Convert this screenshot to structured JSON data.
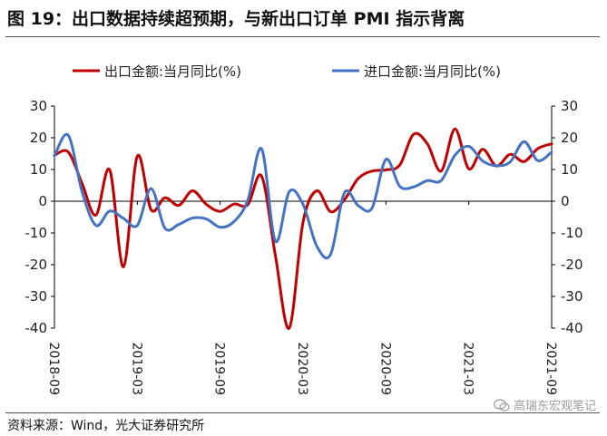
{
  "header": {
    "title": "图 19：出口数据持续超预期，与新出口订单 PMI 指示背离"
  },
  "footer": {
    "source": "资料来源：Wind，光大证券研究所",
    "watermark": "高瑞东宏观笔记"
  },
  "colors": {
    "export": "#C00000",
    "import": "#4472C4",
    "axis": "#000000"
  },
  "chart_data": {
    "type": "line",
    "title": "",
    "xlabel": "",
    "ylabel": "",
    "ylim": [
      -40,
      30
    ],
    "yticks": [
      30,
      20,
      10,
      0,
      -10,
      -20,
      -30,
      -40
    ],
    "yticks_right": [
      30,
      20,
      10,
      0,
      -10,
      -20,
      -30,
      -40
    ],
    "x_tick_labels": [
      "2018-09",
      "2019-03",
      "2019-09",
      "2020-03",
      "2020-09",
      "2021-03",
      "2021-09"
    ],
    "x_tick_positions": [
      0,
      6,
      12,
      18,
      24,
      30,
      36
    ],
    "legend": [
      "出口金额:当月同比(%)",
      "进口金额:当月同比(%)"
    ],
    "legend_position": "top",
    "x": [
      0,
      1,
      2,
      3,
      4,
      5,
      6,
      7,
      8,
      9,
      10,
      11,
      12,
      13,
      14,
      15,
      16,
      17,
      18,
      19,
      20,
      21,
      22,
      23,
      24,
      25,
      26,
      27,
      28,
      29,
      30,
      31,
      32,
      33,
      34,
      35,
      36
    ],
    "series": [
      {
        "name": "出口金额:当月同比(%)",
        "values": [
          14.5,
          15.5,
          5.6,
          -4.4,
          9.9,
          -20.7,
          14.2,
          -2.7,
          1.1,
          -1.3,
          3.3,
          -1.0,
          -3.2,
          -0.9,
          -1.1,
          7.9,
          -17.2,
          -40.0,
          -6.6,
          3.3,
          -3.3,
          0.5,
          7.2,
          9.5,
          9.9,
          11.4,
          21.1,
          18.1,
          9.5,
          22.8,
          10.2,
          16.4,
          11.1,
          14.8,
          12.5,
          16.6,
          18.1
        ]
      },
      {
        "name": "进口金额:当月同比(%)",
        "values": [
          14.3,
          20.8,
          3.0,
          -7.6,
          -3.1,
          -5.4,
          -7.6,
          4.0,
          -8.5,
          -7.3,
          -5.3,
          -5.6,
          -8.2,
          -6.4,
          0.3,
          16.5,
          -12.6,
          3.0,
          -1.0,
          -14.2,
          -16.7,
          2.7,
          -1.4,
          -2.1,
          13.2,
          4.7,
          4.5,
          6.5,
          6.5,
          14.5,
          17.3,
          12.7,
          11.2,
          12.4,
          18.8,
          12.8,
          15.5
        ]
      }
    ]
  }
}
